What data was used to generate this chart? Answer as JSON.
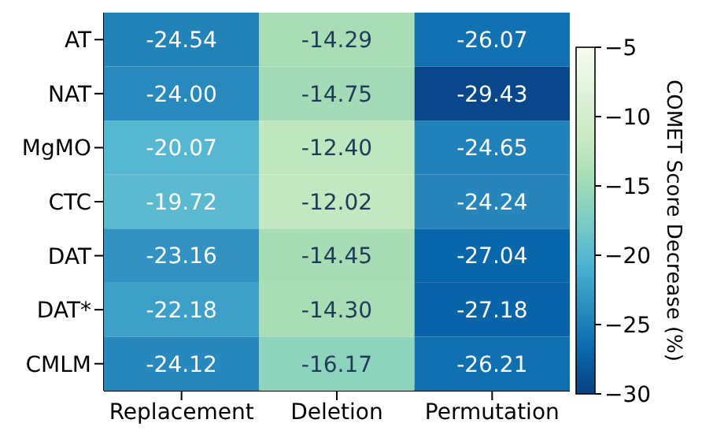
{
  "chart_data": {
    "type": "heatmap",
    "categories": [
      "Replacement",
      "Deletion",
      "Permutation"
    ],
    "y_categories": [
      "AT",
      "NAT",
      "MgMO",
      "CTC",
      "DAT",
      "DAT*",
      "CMLM"
    ],
    "cells": [
      [
        -24.54,
        -14.29,
        -26.07
      ],
      [
        -24.0,
        -14.75,
        -29.43
      ],
      [
        -20.07,
        -12.4,
        -24.65
      ],
      [
        -19.72,
        -12.02,
        -24.24
      ],
      [
        -23.16,
        -14.45,
        -27.04
      ],
      [
        -22.18,
        -14.3,
        -27.18
      ],
      [
        -24.12,
        -16.17,
        -26.21
      ]
    ],
    "cell_labels": [
      [
        "-24.54",
        "-14.29",
        "-26.07"
      ],
      [
        "-24.00",
        "-14.75",
        "-29.43"
      ],
      [
        "-20.07",
        "-12.40",
        "-24.65"
      ],
      [
        "-19.72",
        "-12.02",
        "-24.24"
      ],
      [
        "-23.16",
        "-14.45",
        "-27.04"
      ],
      [
        "-22.18",
        "-14.30",
        "-27.18"
      ],
      [
        "-24.12",
        "-16.17",
        "-26.21"
      ]
    ],
    "data_labels": true,
    "clabel": "COMET Score Decrease (%)",
    "clim": [
      -30,
      -5
    ],
    "cticks": [
      -5,
      -10,
      -15,
      -20,
      -25,
      -30
    ]
  }
}
